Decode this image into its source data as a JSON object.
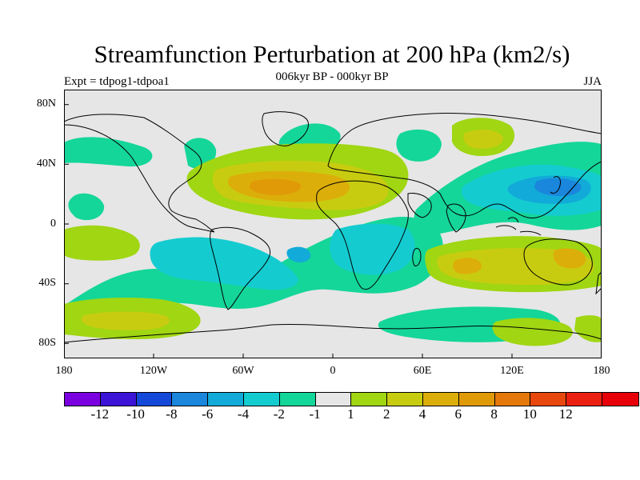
{
  "title": "Streamfunction Perturbation at 200 hPa (km2/s)",
  "subtitle": "006kyr BP - 000kyr BP",
  "left_label": "Expt = tdpog1-tdpoa1",
  "right_label": "JJA",
  "lat_labels": [
    "80N",
    "40N",
    "0",
    "40S",
    "80S"
  ],
  "lon_labels": [
    "180",
    "120W",
    "60W",
    "0",
    "60E",
    "120E",
    "180"
  ],
  "colorbar": {
    "colors": [
      "#7a00e0",
      "#3c14d8",
      "#1448d8",
      "#1a86dc",
      "#12aad8",
      "#14ccd0",
      "#14d698",
      "#e6e6e6",
      "#a0d612",
      "#c8cc10",
      "#dcae0a",
      "#e09a08",
      "#e4780a",
      "#e8480e",
      "#ec2010",
      "#e80008"
    ],
    "ticks": [
      "-12",
      "-10",
      "-8",
      "-6",
      "-4",
      "-2",
      "-1",
      "1",
      "2",
      "4",
      "6",
      "8",
      "10",
      "12"
    ]
  }
}
